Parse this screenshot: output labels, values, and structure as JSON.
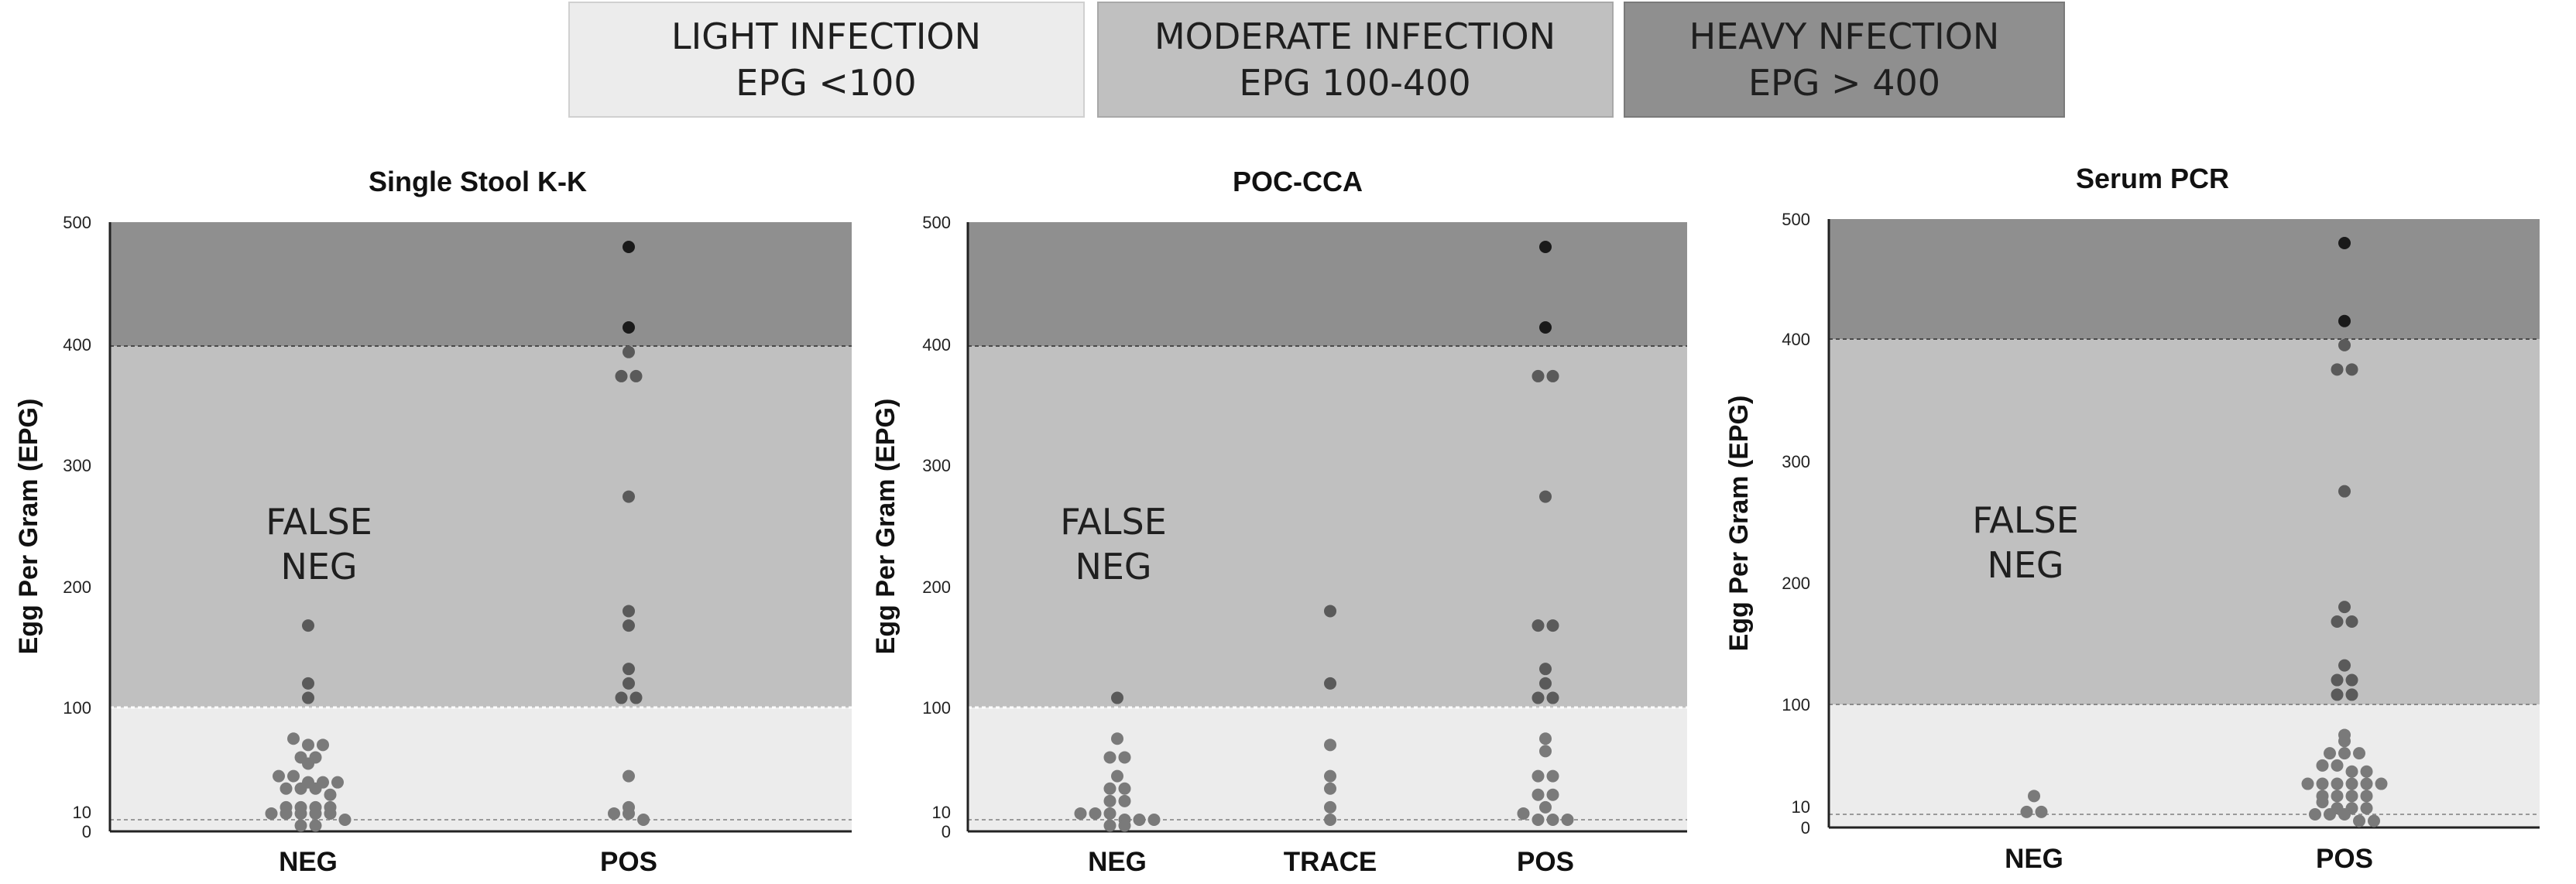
{
  "legend": [
    {
      "line1": "LIGHT INFECTION",
      "line2": "EPG <100",
      "color": "#ececec"
    },
    {
      "line1": "MODERATE INFECTION",
      "line2": "EPG 100-400",
      "color": "#c0c0c0"
    },
    {
      "line1": "HEAVY NFECTION",
      "line2": "EPG > 400",
      "color": "#8f8f8f"
    }
  ],
  "colors": {
    "light": "#ececec",
    "moderate": "#c0c0c0",
    "heavy": "#8f8f8f",
    "dot_light": "#7a7a7a",
    "dot_moderate": "#5a5a5a",
    "dot_heavy": "#1a1a1a"
  },
  "chart_data": [
    {
      "type": "scatter",
      "title": "Single Stool K-K",
      "ylabel": "Egg Per Gram (EPG)",
      "yticks": [
        "0",
        "10",
        "100",
        "200",
        "300",
        "400",
        "500"
      ],
      "categories": [
        "NEG",
        "POS"
      ],
      "annotation": [
        "FALSE",
        "NEG"
      ],
      "points": {
        "NEG": [
          168,
          120,
          108,
          75,
          70,
          70,
          60,
          60,
          55,
          45,
          45,
          40,
          40,
          40,
          35,
          35,
          35,
          30,
          20,
          20,
          20,
          20,
          15,
          15,
          15,
          15,
          15,
          10,
          5,
          5
        ],
        "POS": [
          480,
          415,
          395,
          375,
          375,
          275,
          180,
          168,
          132,
          120,
          108,
          108,
          45,
          20,
          15,
          15,
          10
        ]
      }
    },
    {
      "type": "scatter",
      "title": "POC-CCA",
      "ylabel": "Egg Per Gram (EPG)",
      "yticks": [
        "0",
        "10",
        "100",
        "200",
        "300",
        "400",
        "500"
      ],
      "categories": [
        "NEG",
        "TRACE",
        "POS"
      ],
      "annotation": [
        "FALSE",
        "NEG"
      ],
      "points": {
        "NEG": [
          108,
          75,
          60,
          60,
          45,
          35,
          35,
          25,
          25,
          15,
          15,
          15,
          10,
          10,
          10,
          5,
          5
        ],
        "TRACE": [
          180,
          120,
          70,
          45,
          35,
          20,
          10
        ],
        "POS": [
          480,
          415,
          375,
          375,
          275,
          168,
          168,
          132,
          120,
          108,
          108,
          75,
          65,
          45,
          45,
          30,
          30,
          20,
          15,
          10,
          10,
          10
        ]
      }
    },
    {
      "type": "scatter",
      "title": "Serum PCR",
      "ylabel": "Egg Per Gram (EPG)",
      "yticks": [
        "0",
        "10",
        "100",
        "200",
        "300",
        "400",
        "500"
      ],
      "categories": [
        "NEG",
        "POS"
      ],
      "annotation": [
        "FALSE",
        "NEG"
      ],
      "points": {
        "NEG": [
          25,
          12,
          12
        ],
        "POS": [
          480,
          415,
          395,
          375,
          375,
          275,
          180,
          168,
          168,
          132,
          120,
          120,
          108,
          108,
          75,
          70,
          60,
          60,
          60,
          50,
          50,
          45,
          45,
          35,
          35,
          35,
          35,
          35,
          35,
          25,
          25,
          25,
          25,
          20,
          15,
          15,
          15,
          10,
          10,
          10,
          5,
          5
        ]
      }
    }
  ]
}
